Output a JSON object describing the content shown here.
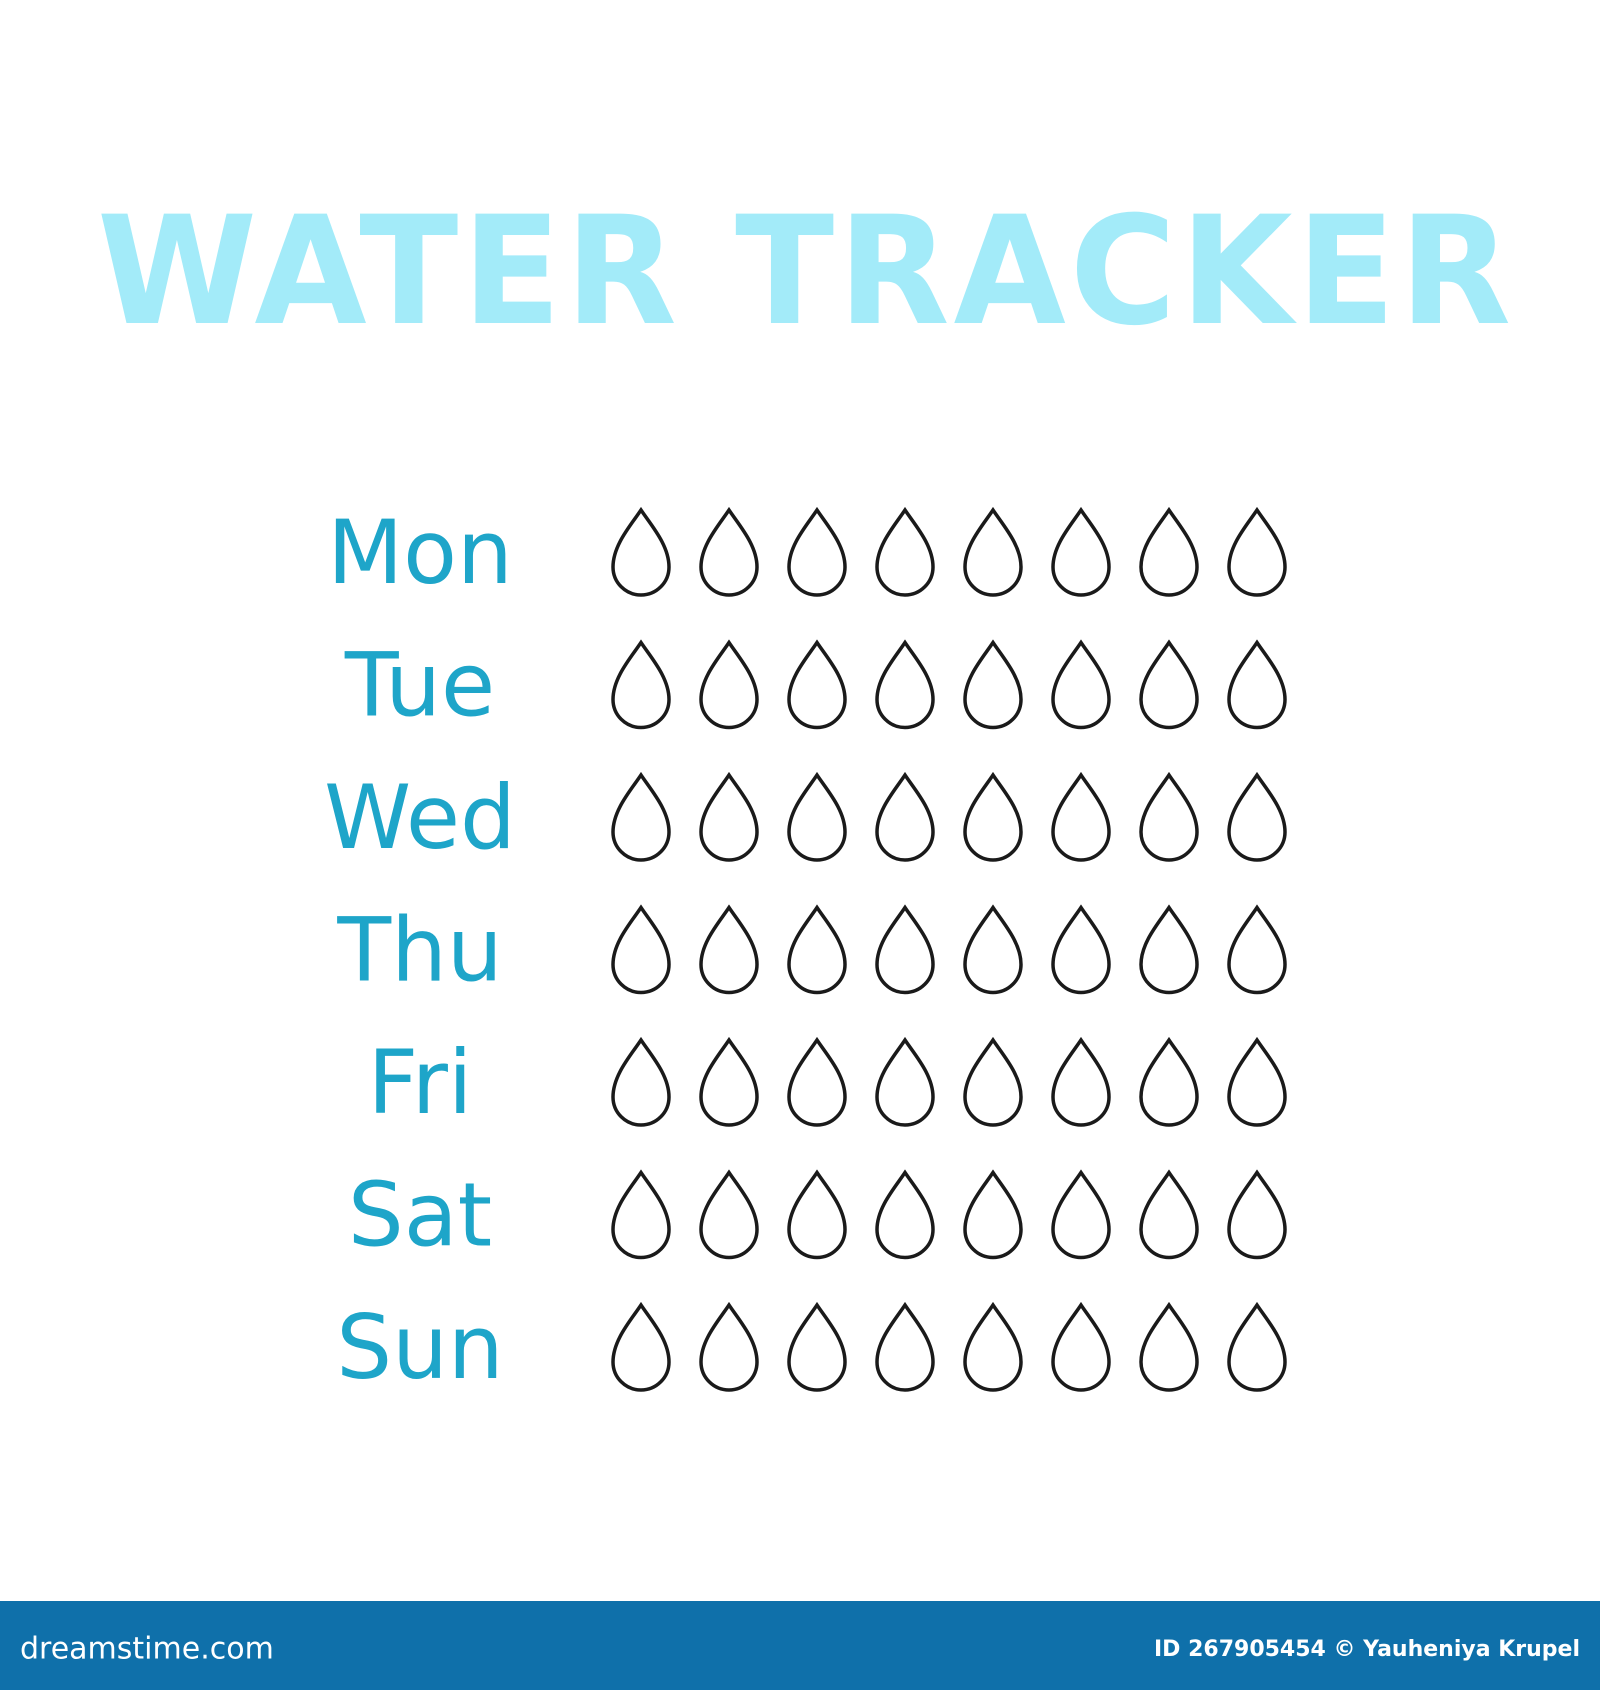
{
  "header": {
    "title": "WATER TRACKER"
  },
  "days": [
    "Mon",
    "Tue",
    "Wed",
    "Thu",
    "Fri",
    "Sat",
    "Sun"
  ],
  "footer": {
    "site": "dreamstime.com",
    "credit": "ID 267905454 © Yauheniya Krupel"
  }
}
